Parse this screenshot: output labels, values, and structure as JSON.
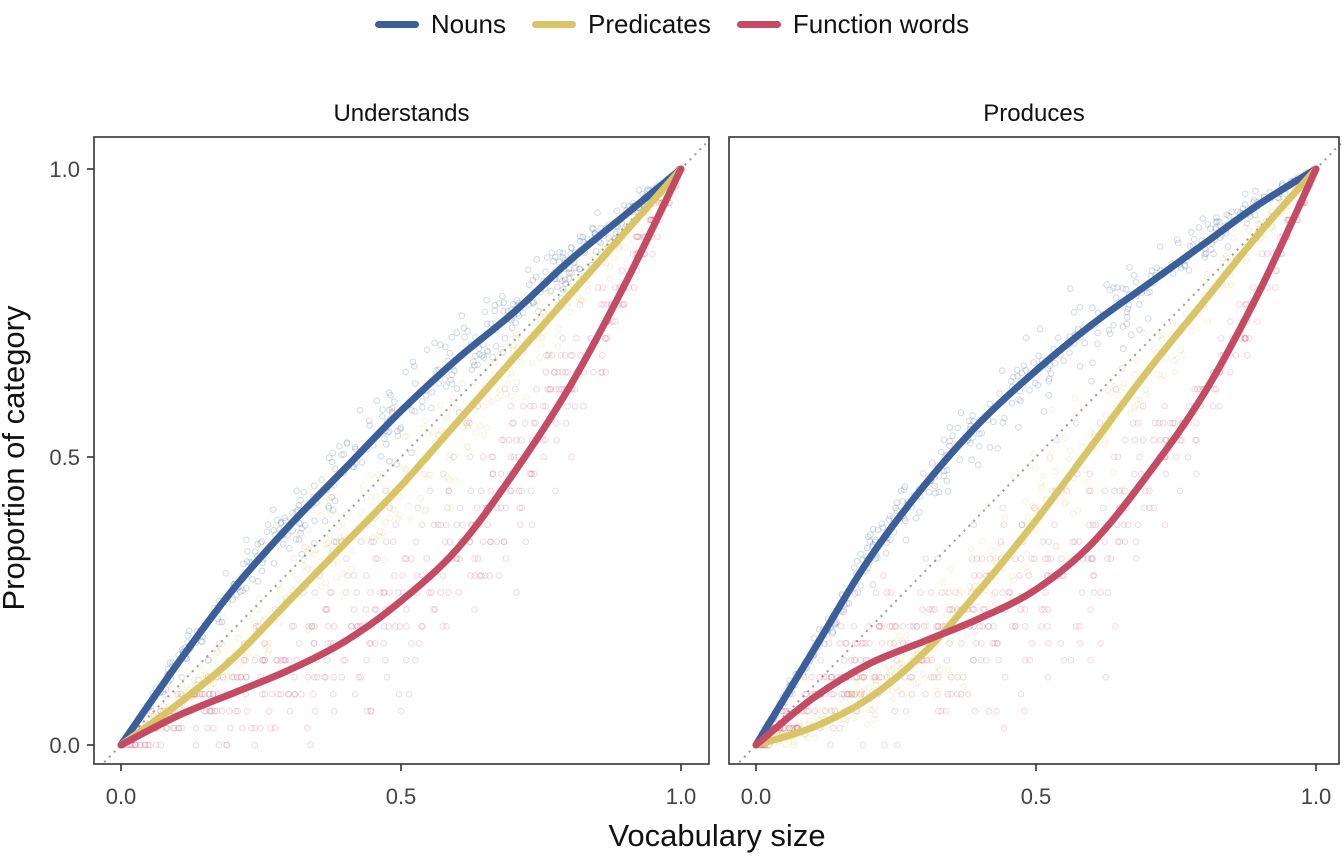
{
  "legend": {
    "items": [
      {
        "label": "Nouns",
        "color": "#3a5f9a"
      },
      {
        "label": "Predicates",
        "color": "#d9c565"
      },
      {
        "label": "Function words",
        "color": "#c44b63"
      }
    ]
  },
  "axes": {
    "xlabel": "Vocabulary size",
    "ylabel": "Proportion of category",
    "xticks": [
      "0.0",
      "0.5",
      "1.0"
    ],
    "yticks": [
      "0.0",
      "0.5",
      "1.0"
    ]
  },
  "chart_data": {
    "type": "line",
    "facets": [
      "Understands",
      "Produces"
    ],
    "xlabel": "Vocabulary size",
    "ylabel": "Proportion of category",
    "xlim": [
      0,
      1
    ],
    "ylim": [
      0,
      1
    ],
    "reference_line": "y = x (dotted)",
    "legend_position": "top",
    "grid": false,
    "panels": [
      {
        "title": "Understands",
        "series": [
          {
            "name": "Nouns",
            "color": "#3a5f9a",
            "x": [
              0,
              0.1,
              0.2,
              0.3,
              0.4,
              0.5,
              0.6,
              0.7,
              0.8,
              0.9,
              1.0
            ],
            "y": [
              0,
              0.14,
              0.27,
              0.38,
              0.48,
              0.58,
              0.67,
              0.75,
              0.84,
              0.92,
              1.0
            ]
          },
          {
            "name": "Predicates",
            "color": "#d9c565",
            "x": [
              0,
              0.1,
              0.2,
              0.3,
              0.4,
              0.5,
              0.6,
              0.7,
              0.8,
              0.9,
              1.0
            ],
            "y": [
              0,
              0.07,
              0.15,
              0.25,
              0.35,
              0.45,
              0.56,
              0.67,
              0.78,
              0.89,
              1.0
            ]
          },
          {
            "name": "Function words",
            "color": "#c44b63",
            "x": [
              0,
              0.1,
              0.2,
              0.3,
              0.4,
              0.5,
              0.6,
              0.7,
              0.8,
              0.9,
              1.0
            ],
            "y": [
              0,
              0.05,
              0.09,
              0.13,
              0.18,
              0.25,
              0.34,
              0.47,
              0.62,
              0.8,
              1.0
            ]
          }
        ]
      },
      {
        "title": "Produces",
        "series": [
          {
            "name": "Nouns",
            "color": "#3a5f9a",
            "x": [
              0,
              0.1,
              0.2,
              0.3,
              0.4,
              0.5,
              0.6,
              0.7,
              0.8,
              0.9,
              1.0
            ],
            "y": [
              0,
              0.16,
              0.32,
              0.45,
              0.56,
              0.65,
              0.73,
              0.8,
              0.87,
              0.94,
              1.0
            ]
          },
          {
            "name": "Predicates",
            "color": "#d9c565",
            "x": [
              0,
              0.1,
              0.2,
              0.3,
              0.4,
              0.5,
              0.6,
              0.7,
              0.8,
              0.9,
              1.0
            ],
            "y": [
              0,
              0.03,
              0.08,
              0.16,
              0.27,
              0.39,
              0.52,
              0.65,
              0.77,
              0.89,
              1.0
            ]
          },
          {
            "name": "Function words",
            "color": "#c44b63",
            "x": [
              0,
              0.1,
              0.2,
              0.3,
              0.4,
              0.5,
              0.6,
              0.7,
              0.8,
              0.9,
              1.0
            ],
            "y": [
              0,
              0.08,
              0.14,
              0.18,
              0.22,
              0.27,
              0.35,
              0.47,
              0.61,
              0.79,
              1.0
            ]
          }
        ]
      }
    ]
  }
}
